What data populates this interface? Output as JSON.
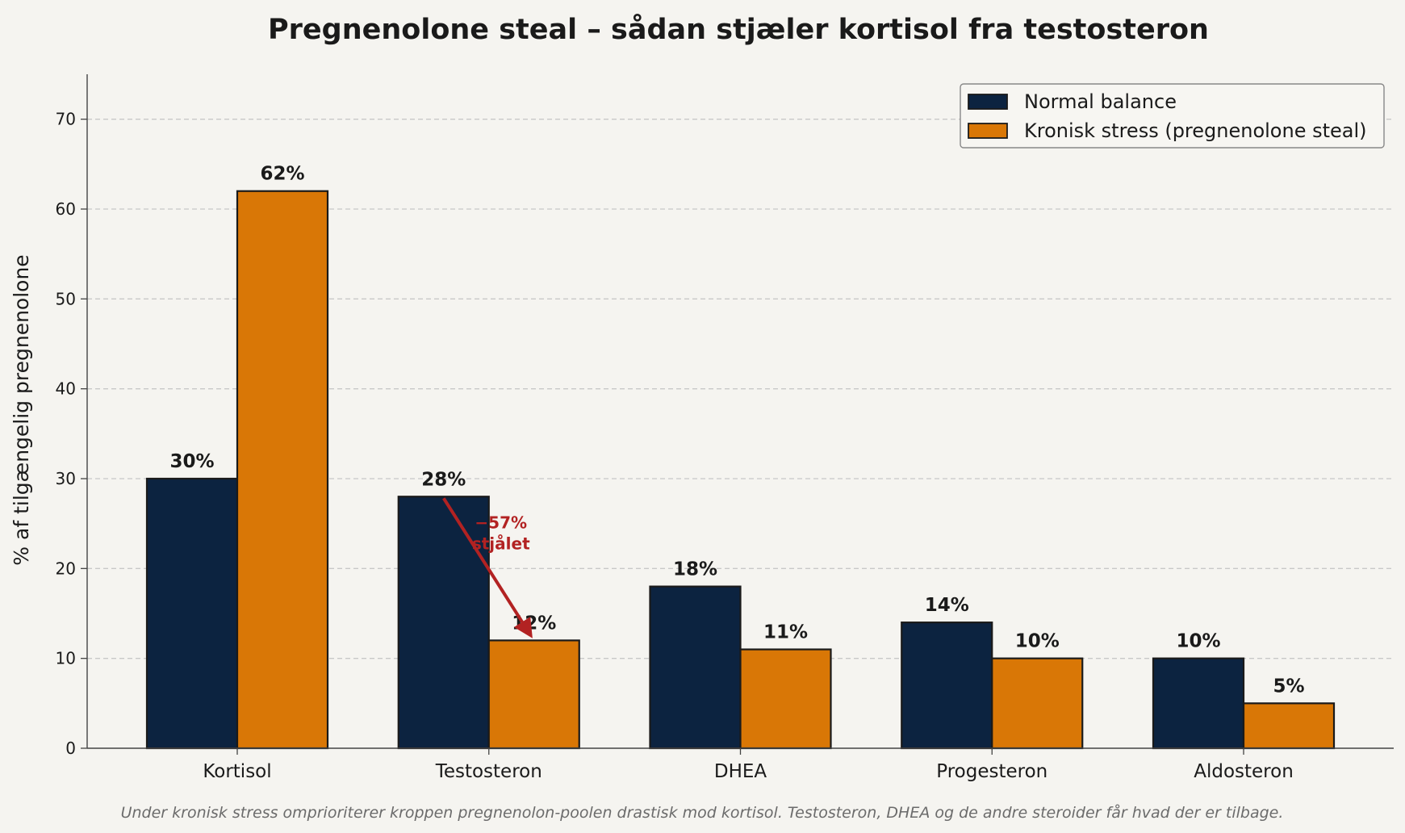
{
  "chart_data": {
    "type": "bar",
    "title": "Pregnenolone steal – sådan stjæler kortisol fra testosteron",
    "ylabel": "% af tilgængelig pregnenolone",
    "xlabel": "",
    "categories": [
      "Kortisol",
      "Testosteron",
      "DHEA",
      "Progesteron",
      "Aldosteron"
    ],
    "series": [
      {
        "name": "Normal balance",
        "color": "#0c2340",
        "values": [
          30,
          28,
          18,
          14,
          10
        ],
        "labels": [
          "30%",
          "28%",
          "18%",
          "14%",
          "10%"
        ]
      },
      {
        "name": "Kronisk stress (pregnenolone steal)",
        "color": "#d97706",
        "values": [
          62,
          12,
          11,
          10,
          5
        ],
        "labels": [
          "62%",
          "12%",
          "11%",
          "10%",
          "5%"
        ]
      }
    ],
    "ylim": [
      0,
      75
    ],
    "yticks": [
      0,
      10,
      20,
      30,
      40,
      50,
      60,
      70
    ],
    "grid": true,
    "legend_position": "top-right",
    "annotation": {
      "line1": "−57%",
      "line2": "stjålet",
      "category": "Testosteron",
      "from_value": 28,
      "to_value": 12,
      "color": "#b22222"
    },
    "caption": "Under kronisk stress omprioriterer kroppen pregnenolon-poolen drastisk mod kortisol. Testosteron, DHEA og de andre steroider får hvad der er tilbage."
  }
}
